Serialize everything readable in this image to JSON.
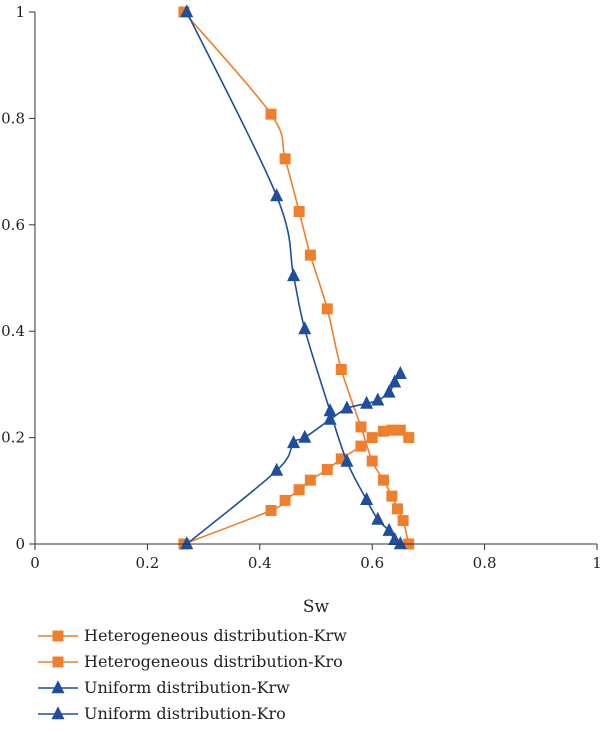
{
  "chart_data": {
    "type": "line",
    "title": "",
    "xlabel": "Sw",
    "ylabel": "",
    "xlim": [
      0,
      1
    ],
    "ylim": [
      0,
      1
    ],
    "xticks": [
      0,
      0.2,
      0.4,
      0.6,
      0.8,
      1
    ],
    "xtick_labels": [
      "0",
      "0.2",
      "0.4",
      "0.6",
      "0.8",
      "1"
    ],
    "yticks": [
      0,
      0.2,
      0.4,
      0.6,
      0.8,
      1
    ],
    "ytick_labels": [
      "0",
      "0.2",
      "0.4",
      "0.6",
      "0.8",
      "1"
    ],
    "grid": false,
    "legend_position": "bottom-left",
    "series": [
      {
        "name": "Heterogeneous distribution-Krw",
        "color": "#f07f2c",
        "marker": "square",
        "x": [
          0.265,
          0.42,
          0.445,
          0.47,
          0.49,
          0.52,
          0.545,
          0.58,
          0.6,
          0.62,
          0.635,
          0.65,
          0.665
        ],
        "y": [
          0,
          0.063,
          0.082,
          0.102,
          0.12,
          0.14,
          0.16,
          0.184,
          0.2,
          0.212,
          0.214,
          0.214,
          0.2
        ]
      },
      {
        "name": "Heterogeneous distribution-Kro",
        "color": "#f07f2c",
        "marker": "square",
        "x": [
          0.265,
          0.42,
          0.445,
          0.47,
          0.49,
          0.52,
          0.545,
          0.58,
          0.6,
          0.62,
          0.635,
          0.645,
          0.655,
          0.665
        ],
        "y": [
          1,
          0.808,
          0.724,
          0.625,
          0.543,
          0.442,
          0.328,
          0.22,
          0.156,
          0.12,
          0.09,
          0.066,
          0.044,
          0
        ]
      },
      {
        "name": "Uniform distribution-Krw",
        "color": "#1f4e9c",
        "marker": "triangle",
        "x": [
          0.27,
          0.43,
          0.46,
          0.48,
          0.525,
          0.555,
          0.59,
          0.61,
          0.63,
          0.64,
          0.65
        ],
        "y": [
          0,
          0.138,
          0.19,
          0.2,
          0.234,
          0.255,
          0.264,
          0.27,
          0.285,
          0.304,
          0.32
        ]
      },
      {
        "name": "Uniform distribution-Kro",
        "color": "#1f4e9c",
        "marker": "triangle",
        "x": [
          0.27,
          0.43,
          0.46,
          0.48,
          0.525,
          0.555,
          0.59,
          0.61,
          0.63,
          0.64,
          0.65
        ],
        "y": [
          1,
          0.654,
          0.504,
          0.404,
          0.25,
          0.155,
          0.083,
          0.046,
          0.025,
          0.008,
          0
        ]
      }
    ]
  }
}
